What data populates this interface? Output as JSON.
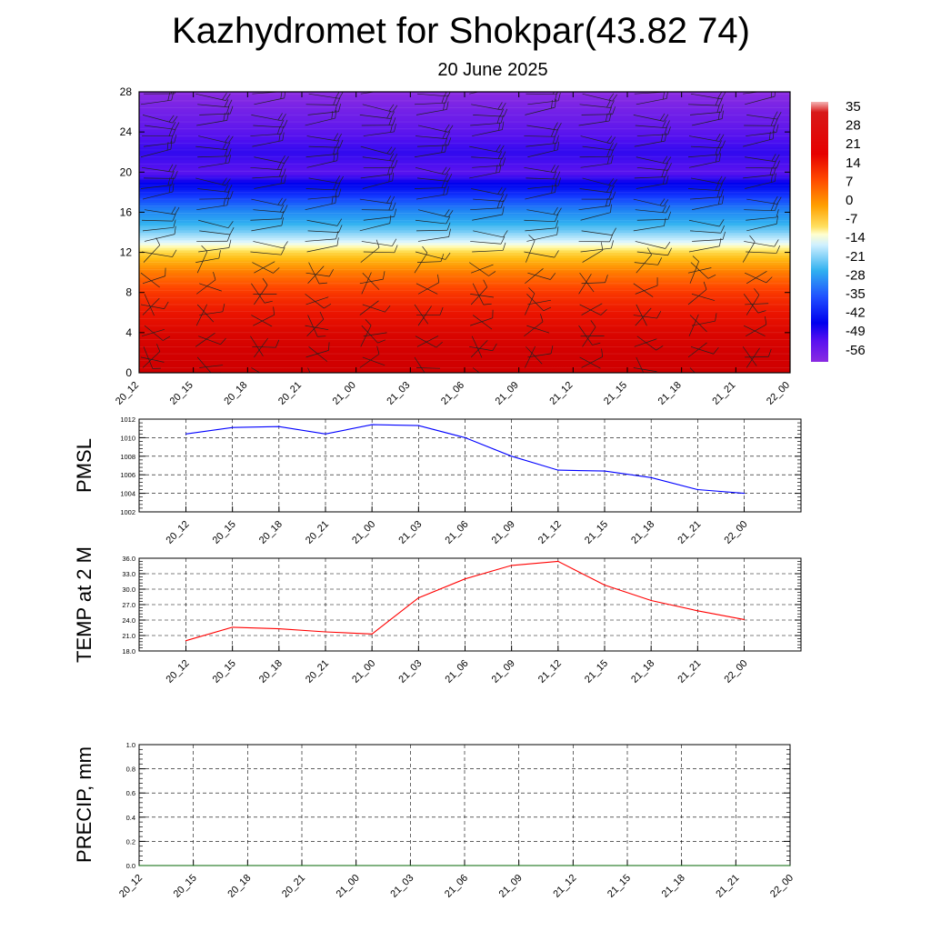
{
  "title": "Kazhydromet for Shokpar(43.82 74)",
  "subtitle": "20 June 2025",
  "time_labels": [
    "20_12",
    "20_15",
    "20_18",
    "20_21",
    "21_00",
    "21_03",
    "21_06",
    "21_09",
    "21_12",
    "21_15",
    "21_18",
    "21_21",
    "22_00"
  ],
  "chart_data": [
    {
      "type": "heatmap",
      "description_of_panel": "temperature cross-section with wind barbs",
      "x": [
        "20_12",
        "20_15",
        "20_18",
        "20_21",
        "21_00",
        "21_03",
        "21_06",
        "21_09",
        "21_12",
        "21_15",
        "21_18",
        "21_21",
        "22_00"
      ],
      "y_ticks": [
        0,
        4,
        8,
        12,
        16,
        20,
        24,
        28
      ],
      "ylim": [
        0,
        28
      ],
      "colorbar_labels": [
        "35",
        "28",
        "21",
        "14",
        "7",
        "0",
        "-7",
        "-14",
        "-21",
        "-28",
        "-35",
        "-42",
        "-49",
        "-56"
      ],
      "colorbar_range": [
        -60,
        38
      ],
      "colors": {
        "hot": "#cc0000",
        "warm": "#ff6a00",
        "neutral": "#fff170",
        "cool": "#2ab0f0",
        "cold": "#0a0aff",
        "coldest": "#8a2be2"
      },
      "temperature_by_level": [
        {
          "z": 0,
          "t": 30
        },
        {
          "z": 2,
          "t": 28
        },
        {
          "z": 4,
          "t": 26
        },
        {
          "z": 6,
          "t": 22
        },
        {
          "z": 8,
          "t": 17
        },
        {
          "z": 10,
          "t": 9
        },
        {
          "z": 12,
          "t": -2
        },
        {
          "z": 13,
          "t": -12
        },
        {
          "z": 14,
          "t": -20
        },
        {
          "z": 16,
          "t": -33
        },
        {
          "z": 18,
          "t": -47
        },
        {
          "z": 20,
          "t": -58
        },
        {
          "z": 22,
          "t": -55
        },
        {
          "z": 24,
          "t": -58
        },
        {
          "z": 28,
          "t": -62
        }
      ],
      "warm_core": {
        "x": "21_12",
        "z": 0,
        "t": 38
      }
    },
    {
      "type": "line",
      "ylabel": "PMSL",
      "x": [
        "20_12",
        "20_15",
        "20_18",
        "20_21",
        "21_00",
        "21_03",
        "21_06",
        "21_09",
        "21_12",
        "21_15",
        "21_18",
        "21_21",
        "22_00"
      ],
      "ylim": [
        1002,
        1012
      ],
      "y_ticks": [
        "1002",
        "1004",
        "1006",
        "1008",
        "1010",
        "1012"
      ],
      "series": [
        {
          "color": "#0000ff",
          "values": [
            1010.4,
            1011.1,
            1011.2,
            1010.4,
            1011.4,
            1011.3,
            1010.0,
            1008.0,
            1006.5,
            1006.4,
            1005.7,
            1004.4,
            1004.0
          ]
        }
      ]
    },
    {
      "type": "line",
      "ylabel": "TEMP at 2 M",
      "x": [
        "20_12",
        "20_15",
        "20_18",
        "20_21",
        "21_00",
        "21_03",
        "21_06",
        "21_09",
        "21_12",
        "21_15",
        "21_18",
        "21_21",
        "22_00"
      ],
      "ylim": [
        18,
        36
      ],
      "y_ticks": [
        "18.0",
        "21.0",
        "24.0",
        "27.0",
        "30.0",
        "33.0",
        "36.0"
      ],
      "series": [
        {
          "color": "#ff0000",
          "values": [
            20.0,
            22.6,
            22.3,
            21.7,
            21.3,
            28.3,
            32.0,
            34.6,
            35.4,
            30.8,
            27.8,
            25.8,
            24.1
          ]
        }
      ]
    },
    {
      "type": "line",
      "ylabel": "PRECIP, mm",
      "x": [
        "20_12",
        "20_15",
        "20_18",
        "20_21",
        "21_00",
        "21_03",
        "21_06",
        "21_09",
        "21_12",
        "21_15",
        "21_18",
        "21_21",
        "22_00"
      ],
      "ylim": [
        0,
        1
      ],
      "y_ticks": [
        "0.0",
        "0.2",
        "0.4",
        "0.6",
        "0.8",
        "1.0"
      ],
      "series": [
        {
          "color": "#006400",
          "values": [
            0,
            0,
            0,
            0,
            0,
            0,
            0,
            0,
            0,
            0,
            0,
            0,
            0
          ]
        }
      ]
    }
  ]
}
